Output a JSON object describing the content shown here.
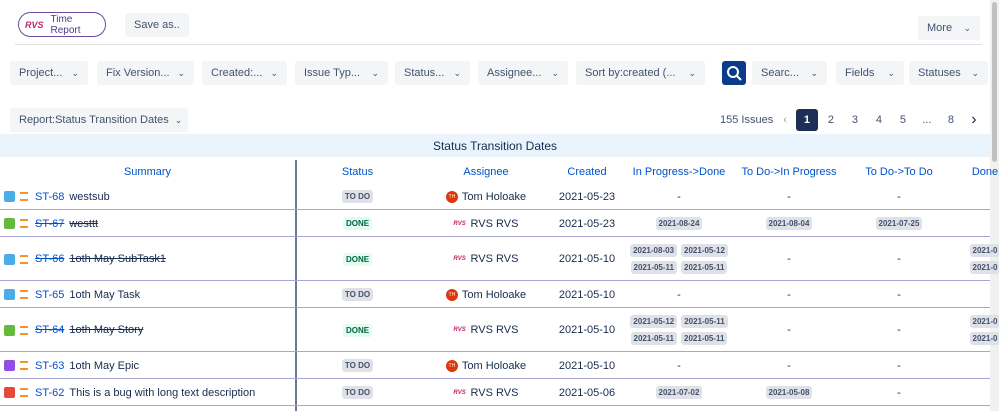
{
  "header": {
    "logo": "RVS",
    "app_button": "Time Report",
    "save_button": "Save as..",
    "more_button": "More"
  },
  "filters": [
    "Project...",
    "Fix Version...",
    "Created:...",
    "Issue Typ...",
    "Status...",
    "Assignee...",
    "Sort by:created (...",
    "Searc...",
    "Fields",
    "Statuses"
  ],
  "report_select": "Report:Status Transition Dates",
  "pagination": {
    "count": "155 Issues",
    "pages": [
      "1",
      "2",
      "3",
      "4",
      "5",
      "...",
      "8"
    ]
  },
  "table": {
    "title": "Status Transition Dates",
    "columns": [
      "Summary",
      "Status",
      "Assignee",
      "Created",
      "In Progress->Done",
      "To Do->In Progress",
      "To Do->To Do",
      "Done"
    ],
    "rows": [
      {
        "icon_color": "#4bade8",
        "key": "ST-68",
        "summary": "westsub",
        "resolved": false,
        "status": "TO DO",
        "avatar": "TH",
        "assignee": "Tom Holoake",
        "created": "2021-05-23",
        "cells": [
          "-",
          "-",
          "-",
          ""
        ]
      },
      {
        "icon_color": "#63ba3c",
        "key": "ST-67",
        "summary": "westtt",
        "resolved": true,
        "status": "DONE",
        "avatar": "RVS",
        "assignee": "RVS RVS",
        "created": "2021-05-23",
        "cells": [
          [
            "2021-08-24"
          ],
          [
            "2021-08-04"
          ],
          [
            "2021-07-25"
          ],
          ""
        ]
      },
      {
        "icon_color": "#4bade8",
        "key": "ST-66",
        "summary": "1oth May SubTask1",
        "resolved": true,
        "status": "DONE",
        "avatar": "RVS",
        "assignee": "RVS RVS",
        "created": "2021-05-10",
        "cells": [
          [
            "2021-08-03",
            "2021-05-12",
            "2021-05-11",
            "2021-05-11"
          ],
          "-",
          "-",
          [
            "2021-0",
            "2021-0"
          ]
        ]
      },
      {
        "icon_color": "#4bade8",
        "key": "ST-65",
        "summary": "1oth May Task",
        "resolved": false,
        "status": "TO DO",
        "avatar": "TH",
        "assignee": "Tom Holoake",
        "created": "2021-05-10",
        "cells": [
          "-",
          "-",
          "-",
          ""
        ]
      },
      {
        "icon_color": "#63ba3c",
        "key": "ST-64",
        "summary": "1oth May Story",
        "resolved": true,
        "status": "DONE",
        "avatar": "RVS",
        "assignee": "RVS RVS",
        "created": "2021-05-10",
        "cells": [
          [
            "2021-05-12",
            "2021-05-11",
            "2021-05-11",
            "2021-05-11"
          ],
          "-",
          "-",
          [
            "2021-0",
            "2021-0"
          ]
        ]
      },
      {
        "icon_color": "#904ee2",
        "key": "ST-63",
        "summary": "1oth May Epic",
        "resolved": false,
        "status": "TO DO",
        "avatar": "TH",
        "assignee": "Tom Holoake",
        "created": "2021-05-10",
        "cells": [
          "-",
          "-",
          "-",
          ""
        ]
      },
      {
        "icon_color": "#e5493a",
        "key": "ST-62",
        "summary": "This is a bug with long text description",
        "resolved": false,
        "status": "TO DO",
        "avatar": "RVS",
        "assignee": "RVS RVS",
        "created": "2021-05-06",
        "cells": [
          [
            "2021-07-02"
          ],
          [
            "2021-05-08"
          ],
          "-",
          ""
        ]
      }
    ]
  }
}
